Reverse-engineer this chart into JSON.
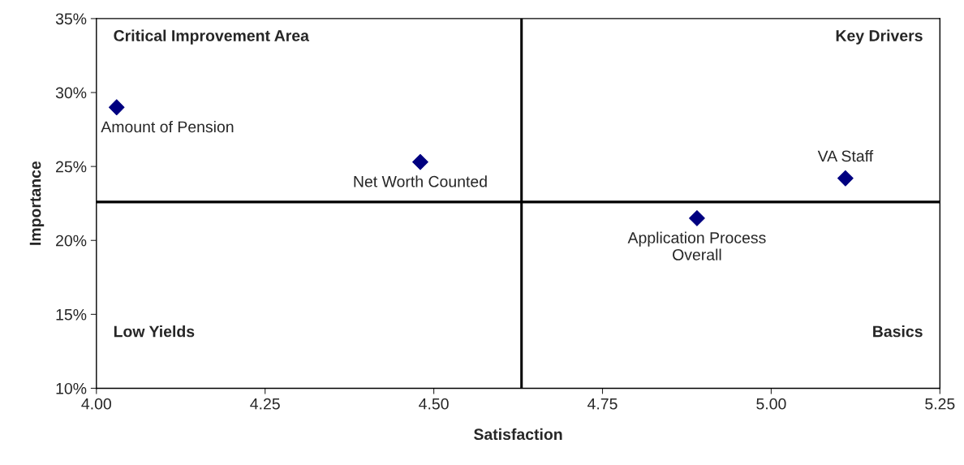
{
  "chart_data": {
    "type": "scatter",
    "xlabel": "Satisfaction",
    "ylabel": "Importance",
    "x": [
      4.03,
      4.48,
      4.89,
      5.11
    ],
    "series": [
      {
        "color": "#000080",
        "values": [
          29.0,
          25.3,
          21.5,
          24.2
        ]
      }
    ],
    "marker": "diamond",
    "grid": false,
    "legend": false,
    "xlim": [
      4.0,
      5.25
    ],
    "xticks": [
      {
        "value": 4.0,
        "label": "4.00"
      },
      {
        "value": 4.25,
        "label": "4.25"
      },
      {
        "value": 4.5,
        "label": "4.50"
      },
      {
        "value": 4.75,
        "label": "4.75"
      },
      {
        "value": 5.0,
        "label": "5.00"
      },
      {
        "value": 5.25,
        "label": "5.25"
      }
    ],
    "ylim": [
      10,
      35
    ],
    "yticks": [
      {
        "value": 10,
        "label": "10%"
      },
      {
        "value": 15,
        "label": "15%"
      },
      {
        "value": 20,
        "label": "20%"
      },
      {
        "value": 25,
        "label": "25%"
      },
      {
        "value": 30,
        "label": "30%"
      },
      {
        "value": 35,
        "label": "35%"
      }
    ],
    "ref_lines": [
      {
        "axis": "x",
        "value": 4.63,
        "color": "#000000"
      },
      {
        "axis": "y",
        "value": 22.6,
        "color": "#000000"
      }
    ],
    "annotations": [
      {
        "text": "Amount of Pension",
        "x": 4.03,
        "y": 29.0
      },
      {
        "text": "Net Worth Counted",
        "x": 4.48,
        "y": 25.3
      },
      {
        "text": "Application Process\nOverall",
        "x": 4.89,
        "y": 21.5
      },
      {
        "text": "VA Staff",
        "x": 5.11,
        "y": 24.2
      },
      "Critical Improvement Area",
      "Key Drivers",
      "Low Yields",
      "Basics"
    ]
  }
}
